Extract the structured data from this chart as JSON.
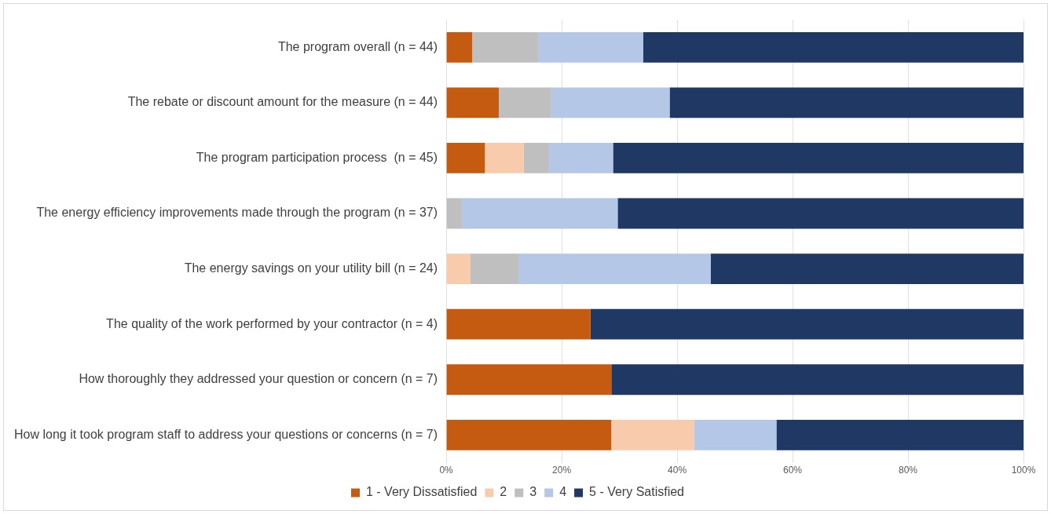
{
  "chart_data": {
    "type": "bar",
    "orientation": "horizontal",
    "stacked": true,
    "categories": [
      "The program overall (n = 44)",
      "The rebate or discount amount for the measure (n = 44)",
      "The program participation process  (n = 45)",
      "The energy efficiency improvements made through the program (n = 37)",
      "The energy savings on your utility bill (n = 24)",
      "The quality of the work performed by your contractor (n = 4)",
      "How thoroughly they addressed your question or concern (n = 7)",
      "How long it took program staff to address your questions or concerns (n = 7)"
    ],
    "series": [
      {
        "name": "1 - Very Dissatisfied",
        "color": "#c55a11",
        "values": [
          4.5,
          9.1,
          6.7,
          0,
          0,
          25,
          28.6,
          28.6
        ]
      },
      {
        "name": "2",
        "color": "#f8cbad",
        "values": [
          0,
          0,
          6.7,
          0,
          4.2,
          0,
          0,
          14.3
        ]
      },
      {
        "name": "3",
        "color": "#bfbfbf",
        "values": [
          11.4,
          9.1,
          4.4,
          2.7,
          8.3,
          0,
          0,
          0
        ]
      },
      {
        "name": "4",
        "color": "#b4c7e7",
        "values": [
          18.2,
          20.5,
          11.1,
          27.0,
          33.3,
          0,
          0,
          14.3
        ]
      },
      {
        "name": "5 - Very Satisfied",
        "color": "#203864",
        "values": [
          65.9,
          61.4,
          71.1,
          70.3,
          54.2,
          75,
          71.4,
          42.9
        ]
      }
    ],
    "xlim": [
      0,
      100
    ],
    "xticks": [
      {
        "value": 0,
        "label": "0%"
      },
      {
        "value": 20,
        "label": "20%"
      },
      {
        "value": 40,
        "label": "40%"
      },
      {
        "value": 60,
        "label": "60%"
      },
      {
        "value": 80,
        "label": "80%"
      },
      {
        "value": 100,
        "label": "100%"
      }
    ],
    "grid": "x",
    "legend": "bottom"
  }
}
